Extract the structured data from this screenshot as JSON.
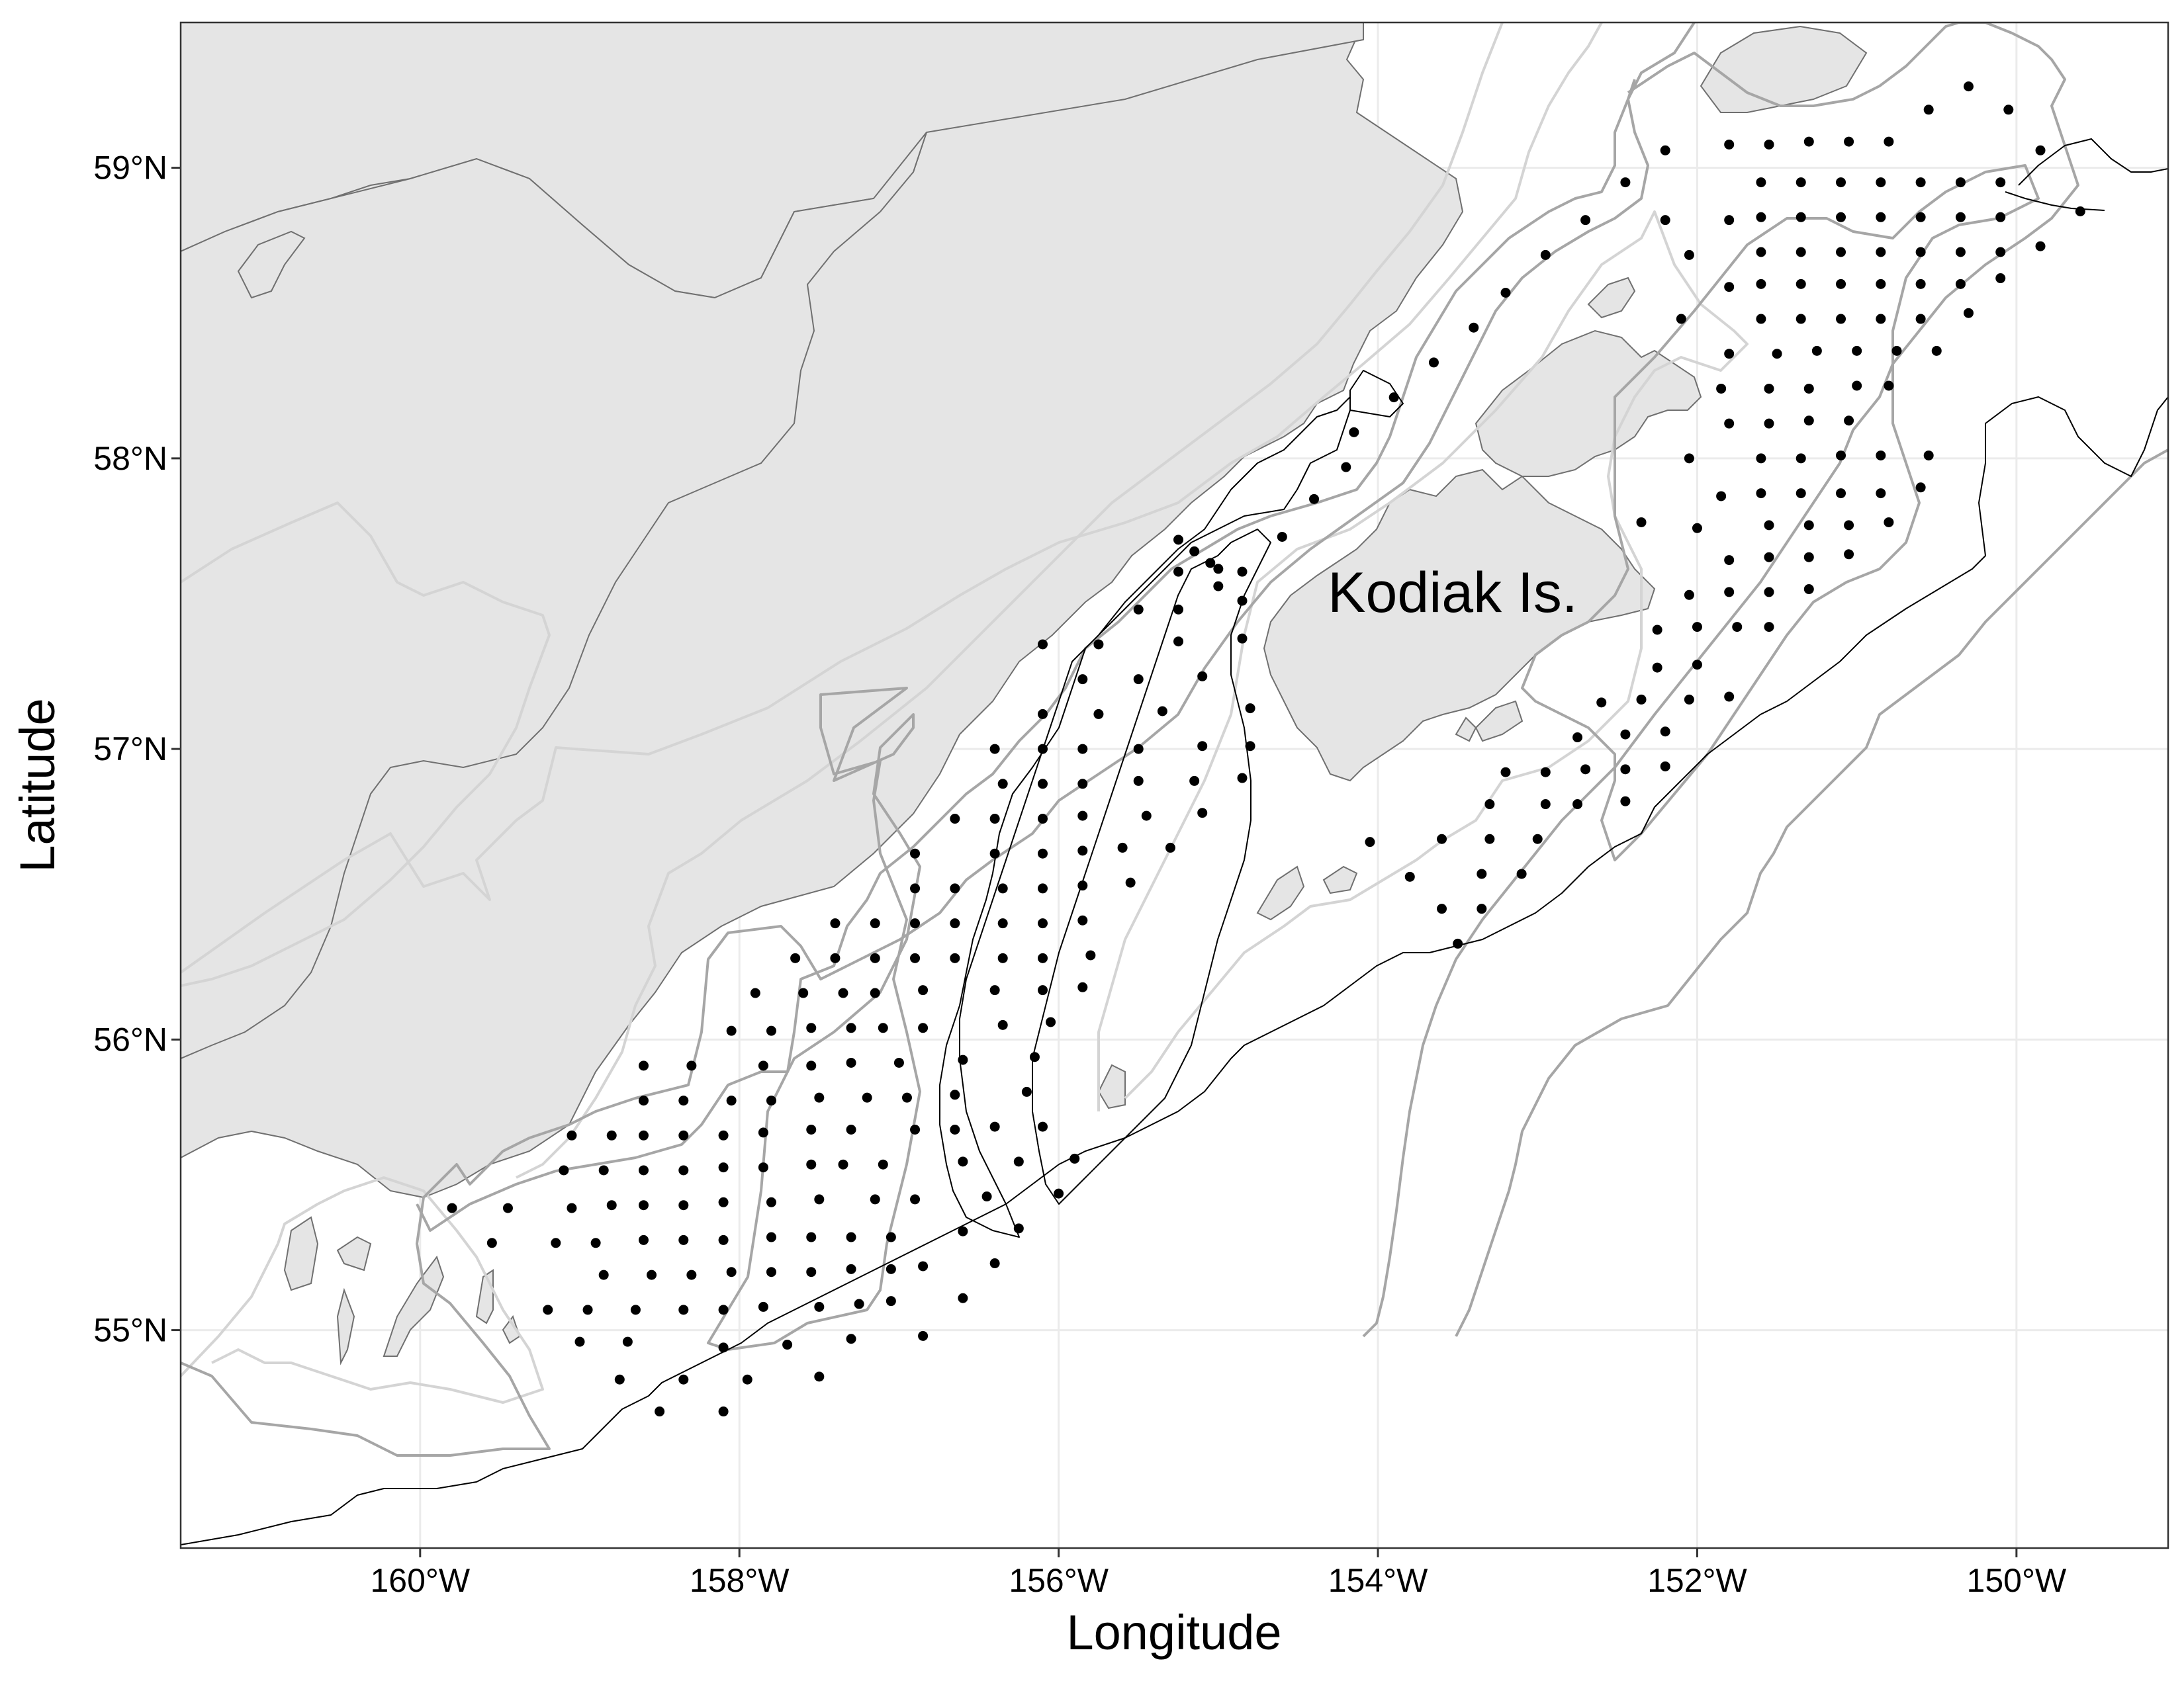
{
  "figure": {
    "xlabel": "Longitude",
    "ylabel": "Latitude",
    "place_label": "Kodiak Is.",
    "x_ticks": [
      {
        "value": -160,
        "label": "160°W"
      },
      {
        "value": -158,
        "label": "158°W"
      },
      {
        "value": -156,
        "label": "156°W"
      },
      {
        "value": -154,
        "label": "154°W"
      },
      {
        "value": -152,
        "label": "152°W"
      },
      {
        "value": -150,
        "label": "150°W"
      }
    ],
    "y_ticks": [
      {
        "value": 55,
        "label": "55°N"
      },
      {
        "value": 56,
        "label": "56°N"
      },
      {
        "value": 57,
        "label": "57°N"
      },
      {
        "value": 58,
        "label": "58°N"
      },
      {
        "value": 59,
        "label": "59°N"
      }
    ],
    "xlim": [
      -161.5,
      -149.05
    ],
    "ylim": [
      54.25,
      59.5
    ],
    "grid": true,
    "colors": {
      "land_fill": "#e5e5e5",
      "land_outline": "#707070",
      "isobath_dark": "#000000",
      "isobath_mid": "#a6a6a6",
      "isobath_light": "#d4d4d4",
      "grid": "#ebebeb",
      "station": "#000000"
    }
  },
  "chart_data": {
    "type": "scatter",
    "description_series": "survey stations",
    "points": [
      [
        -150.3,
        59.28
      ],
      [
        -150.05,
        59.2
      ],
      [
        -150.55,
        59.2
      ],
      [
        -150.8,
        59.09
      ],
      [
        -151.05,
        59.09
      ],
      [
        -151.3,
        59.09
      ],
      [
        -151.55,
        59.08
      ],
      [
        -151.8,
        59.08
      ],
      [
        -152.2,
        59.06
      ],
      [
        -149.85,
        59.06
      ],
      [
        -150.1,
        58.95
      ],
      [
        -150.35,
        58.95
      ],
      [
        -150.6,
        58.95
      ],
      [
        -150.85,
        58.95
      ],
      [
        -151.1,
        58.95
      ],
      [
        -151.35,
        58.95
      ],
      [
        -151.6,
        58.95
      ],
      [
        -152.45,
        58.95
      ],
      [
        -149.6,
        58.85
      ],
      [
        -150.1,
        58.83
      ],
      [
        -150.35,
        58.83
      ],
      [
        -150.6,
        58.83
      ],
      [
        -150.85,
        58.83
      ],
      [
        -151.1,
        58.83
      ],
      [
        -151.35,
        58.83
      ],
      [
        -151.6,
        58.83
      ],
      [
        -151.8,
        58.82
      ],
      [
        -152.2,
        58.82
      ],
      [
        -152.7,
        58.82
      ],
      [
        -149.85,
        58.73
      ],
      [
        -150.1,
        58.71
      ],
      [
        -150.35,
        58.71
      ],
      [
        -150.6,
        58.71
      ],
      [
        -150.85,
        58.71
      ],
      [
        -151.1,
        58.71
      ],
      [
        -151.35,
        58.71
      ],
      [
        -151.6,
        58.71
      ],
      [
        -152.05,
        58.7
      ],
      [
        -152.95,
        58.7
      ],
      [
        -150.1,
        58.62
      ],
      [
        -150.35,
        58.6
      ],
      [
        -150.6,
        58.6
      ],
      [
        -150.85,
        58.6
      ],
      [
        -151.1,
        58.6
      ],
      [
        -151.35,
        58.6
      ],
      [
        -151.6,
        58.6
      ],
      [
        -151.8,
        58.59
      ],
      [
        -153.2,
        58.57
      ],
      [
        -150.3,
        58.5
      ],
      [
        -150.6,
        58.48
      ],
      [
        -150.85,
        58.48
      ],
      [
        -151.1,
        58.48
      ],
      [
        -151.35,
        58.48
      ],
      [
        -151.6,
        58.48
      ],
      [
        -152.1,
        58.48
      ],
      [
        -153.4,
        58.45
      ],
      [
        -150.5,
        58.37
      ],
      [
        -150.75,
        58.37
      ],
      [
        -151.0,
        58.37
      ],
      [
        -151.25,
        58.37
      ],
      [
        -151.5,
        58.36
      ],
      [
        -151.8,
        58.36
      ],
      [
        -153.65,
        58.33
      ],
      [
        -150.8,
        58.25
      ],
      [
        -151.0,
        58.25
      ],
      [
        -151.3,
        58.24
      ],
      [
        -151.55,
        58.24
      ],
      [
        -151.85,
        58.24
      ],
      [
        -153.9,
        58.21
      ],
      [
        -151.05,
        58.13
      ],
      [
        -151.3,
        58.13
      ],
      [
        -151.55,
        58.12
      ],
      [
        -151.8,
        58.12
      ],
      [
        -154.15,
        58.09
      ],
      [
        -150.55,
        58.01
      ],
      [
        -150.85,
        58.01
      ],
      [
        -151.1,
        58.01
      ],
      [
        -151.35,
        58.0
      ],
      [
        -151.6,
        58.0
      ],
      [
        -152.05,
        58.0
      ],
      [
        -154.2,
        57.97
      ],
      [
        -150.6,
        57.9
      ],
      [
        -150.85,
        57.88
      ],
      [
        -151.1,
        57.88
      ],
      [
        -151.35,
        57.88
      ],
      [
        -151.6,
        57.88
      ],
      [
        -151.85,
        57.87
      ],
      [
        -154.4,
        57.86
      ],
      [
        -150.8,
        57.78
      ],
      [
        -151.05,
        57.77
      ],
      [
        -151.3,
        57.77
      ],
      [
        -151.55,
        57.77
      ],
      [
        -152.0,
        57.76
      ],
      [
        -152.35,
        57.78
      ],
      [
        -154.6,
        57.73
      ],
      [
        -155.25,
        57.72
      ],
      [
        -155.15,
        57.68
      ],
      [
        -155.05,
        57.64
      ],
      [
        -151.05,
        57.67
      ],
      [
        -151.3,
        57.66
      ],
      [
        -151.55,
        57.66
      ],
      [
        -151.8,
        57.65
      ],
      [
        -155.0,
        57.62
      ],
      [
        -154.85,
        57.61
      ],
      [
        -155.25,
        57.61
      ],
      [
        -151.3,
        57.55
      ],
      [
        -151.55,
        57.54
      ],
      [
        -151.8,
        57.54
      ],
      [
        -152.05,
        57.53
      ],
      [
        -155.0,
        57.56
      ],
      [
        -154.85,
        57.51
      ],
      [
        -155.25,
        57.48
      ],
      [
        -151.55,
        57.42
      ],
      [
        -151.75,
        57.42
      ],
      [
        -152.0,
        57.42
      ],
      [
        -152.25,
        57.41
      ],
      [
        -155.5,
        57.48
      ],
      [
        -156.1,
        57.36
      ],
      [
        -155.75,
        57.36
      ],
      [
        -155.25,
        57.37
      ],
      [
        -154.85,
        57.38
      ],
      [
        -152.0,
        57.29
      ],
      [
        -152.25,
        57.28
      ],
      [
        -155.85,
        57.24
      ],
      [
        -155.5,
        57.24
      ],
      [
        -155.1,
        57.25
      ],
      [
        -151.8,
        57.18
      ],
      [
        -152.05,
        57.17
      ],
      [
        -152.35,
        57.17
      ],
      [
        -152.6,
        57.16
      ],
      [
        -156.1,
        57.12
      ],
      [
        -155.75,
        57.12
      ],
      [
        -155.35,
        57.13
      ],
      [
        -154.8,
        57.14
      ],
      [
        -152.2,
        57.06
      ],
      [
        -152.45,
        57.05
      ],
      [
        -156.4,
        57.0
      ],
      [
        -156.1,
        57.0
      ],
      [
        -155.85,
        57.0
      ],
      [
        -155.5,
        57.0
      ],
      [
        -155.1,
        57.01
      ],
      [
        -154.8,
        57.01
      ],
      [
        -152.75,
        57.04
      ],
      [
        -156.35,
        56.88
      ],
      [
        -156.1,
        56.88
      ],
      [
        -155.85,
        56.88
      ],
      [
        -155.5,
        56.89
      ],
      [
        -155.15,
        56.89
      ],
      [
        -154.85,
        56.9
      ],
      [
        -152.2,
        56.94
      ],
      [
        -152.7,
        56.93
      ],
      [
        -152.45,
        56.93
      ],
      [
        -152.95,
        56.92
      ],
      [
        -153.2,
        56.92
      ],
      [
        -156.65,
        56.76
      ],
      [
        -156.4,
        56.76
      ],
      [
        -156.1,
        56.76
      ],
      [
        -155.85,
        56.77
      ],
      [
        -155.45,
        56.77
      ],
      [
        -155.1,
        56.78
      ],
      [
        -152.45,
        56.82
      ],
      [
        -152.75,
        56.81
      ],
      [
        -152.95,
        56.81
      ],
      [
        -153.3,
        56.81
      ],
      [
        -156.9,
        56.64
      ],
      [
        -156.4,
        56.64
      ],
      [
        -156.1,
        56.64
      ],
      [
        -155.85,
        56.65
      ],
      [
        -155.6,
        56.66
      ],
      [
        -155.3,
        56.66
      ],
      [
        -153.0,
        56.69
      ],
      [
        -153.3,
        56.69
      ],
      [
        -153.6,
        56.69
      ],
      [
        -154.05,
        56.68
      ],
      [
        -156.9,
        56.52
      ],
      [
        -156.65,
        56.52
      ],
      [
        -156.35,
        56.52
      ],
      [
        -156.1,
        56.52
      ],
      [
        -155.85,
        56.53
      ],
      [
        -155.55,
        56.54
      ],
      [
        -153.1,
        56.57
      ],
      [
        -153.35,
        56.57
      ],
      [
        -153.8,
        56.56
      ],
      [
        -157.4,
        56.4
      ],
      [
        -157.15,
        56.4
      ],
      [
        -156.9,
        56.4
      ],
      [
        -156.65,
        56.4
      ],
      [
        -156.35,
        56.4
      ],
      [
        -156.1,
        56.4
      ],
      [
        -155.85,
        56.41
      ],
      [
        -153.35,
        56.45
      ],
      [
        -153.6,
        56.45
      ],
      [
        -157.65,
        56.28
      ],
      [
        -157.4,
        56.28
      ],
      [
        -157.15,
        56.28
      ],
      [
        -156.9,
        56.28
      ],
      [
        -156.65,
        56.28
      ],
      [
        -156.35,
        56.28
      ],
      [
        -156.1,
        56.28
      ],
      [
        -155.8,
        56.29
      ],
      [
        -153.5,
        56.33
      ],
      [
        -157.9,
        56.16
      ],
      [
        -157.6,
        56.16
      ],
      [
        -157.35,
        56.16
      ],
      [
        -157.15,
        56.16
      ],
      [
        -156.85,
        56.17
      ],
      [
        -156.4,
        56.17
      ],
      [
        -156.1,
        56.17
      ],
      [
        -155.85,
        56.18
      ],
      [
        -158.05,
        56.03
      ],
      [
        -157.8,
        56.03
      ],
      [
        -157.55,
        56.04
      ],
      [
        -157.3,
        56.04
      ],
      [
        -157.1,
        56.04
      ],
      [
        -156.85,
        56.04
      ],
      [
        -156.35,
        56.05
      ],
      [
        -156.05,
        56.06
      ],
      [
        -158.6,
        55.91
      ],
      [
        -158.3,
        55.91
      ],
      [
        -157.85,
        55.91
      ],
      [
        -157.55,
        55.91
      ],
      [
        -157.3,
        55.92
      ],
      [
        -157.0,
        55.92
      ],
      [
        -156.6,
        55.93
      ],
      [
        -156.15,
        55.94
      ],
      [
        -158.6,
        55.79
      ],
      [
        -158.35,
        55.79
      ],
      [
        -158.05,
        55.79
      ],
      [
        -157.8,
        55.79
      ],
      [
        -157.5,
        55.8
      ],
      [
        -157.2,
        55.8
      ],
      [
        -156.95,
        55.8
      ],
      [
        -156.65,
        55.81
      ],
      [
        -156.2,
        55.82
      ],
      [
        -159.05,
        55.67
      ],
      [
        -158.8,
        55.67
      ],
      [
        -158.6,
        55.67
      ],
      [
        -158.35,
        55.67
      ],
      [
        -158.1,
        55.67
      ],
      [
        -157.85,
        55.68
      ],
      [
        -157.55,
        55.69
      ],
      [
        -157.3,
        55.69
      ],
      [
        -156.9,
        55.69
      ],
      [
        -156.65,
        55.69
      ],
      [
        -156.4,
        55.7
      ],
      [
        -156.1,
        55.7
      ],
      [
        -159.1,
        55.55
      ],
      [
        -158.85,
        55.55
      ],
      [
        -158.6,
        55.55
      ],
      [
        -158.35,
        55.55
      ],
      [
        -158.1,
        55.56
      ],
      [
        -157.85,
        55.56
      ],
      [
        -157.55,
        55.57
      ],
      [
        -157.35,
        55.57
      ],
      [
        -157.1,
        55.57
      ],
      [
        -156.6,
        55.58
      ],
      [
        -156.25,
        55.58
      ],
      [
        -155.9,
        55.59
      ],
      [
        -159.8,
        55.42
      ],
      [
        -159.45,
        55.42
      ],
      [
        -159.05,
        55.42
      ],
      [
        -158.8,
        55.43
      ],
      [
        -158.6,
        55.43
      ],
      [
        -158.35,
        55.43
      ],
      [
        -158.1,
        55.44
      ],
      [
        -157.8,
        55.44
      ],
      [
        -157.5,
        55.45
      ],
      [
        -157.15,
        55.45
      ],
      [
        -156.9,
        55.45
      ],
      [
        -156.45,
        55.46
      ],
      [
        -156.0,
        55.47
      ],
      [
        -159.55,
        55.3
      ],
      [
        -159.15,
        55.3
      ],
      [
        -158.9,
        55.3
      ],
      [
        -158.6,
        55.31
      ],
      [
        -158.35,
        55.31
      ],
      [
        -158.1,
        55.31
      ],
      [
        -157.8,
        55.32
      ],
      [
        -157.55,
        55.32
      ],
      [
        -157.3,
        55.32
      ],
      [
        -157.05,
        55.32
      ],
      [
        -156.6,
        55.34
      ],
      [
        -156.25,
        55.35
      ],
      [
        -158.85,
        55.19
      ],
      [
        -158.55,
        55.19
      ],
      [
        -158.3,
        55.19
      ],
      [
        -158.05,
        55.2
      ],
      [
        -157.8,
        55.2
      ],
      [
        -157.55,
        55.2
      ],
      [
        -157.3,
        55.21
      ],
      [
        -157.05,
        55.21
      ],
      [
        -156.85,
        55.22
      ],
      [
        -156.4,
        55.23
      ],
      [
        -159.2,
        55.07
      ],
      [
        -158.95,
        55.07
      ],
      [
        -158.65,
        55.07
      ],
      [
        -158.35,
        55.07
      ],
      [
        -158.1,
        55.07
      ],
      [
        -157.85,
        55.08
      ],
      [
        -157.5,
        55.08
      ],
      [
        -157.25,
        55.09
      ],
      [
        -157.05,
        55.1
      ],
      [
        -156.6,
        55.11
      ],
      [
        -159.0,
        54.96
      ],
      [
        -158.7,
        54.96
      ],
      [
        -158.1,
        54.94
      ],
      [
        -157.7,
        54.95
      ],
      [
        -157.3,
        54.97
      ],
      [
        -156.85,
        54.98
      ],
      [
        -158.75,
        54.83
      ],
      [
        -158.35,
        54.83
      ],
      [
        -157.95,
        54.83
      ],
      [
        -157.5,
        54.84
      ],
      [
        -158.5,
        54.72
      ],
      [
        -158.1,
        54.72
      ]
    ]
  }
}
